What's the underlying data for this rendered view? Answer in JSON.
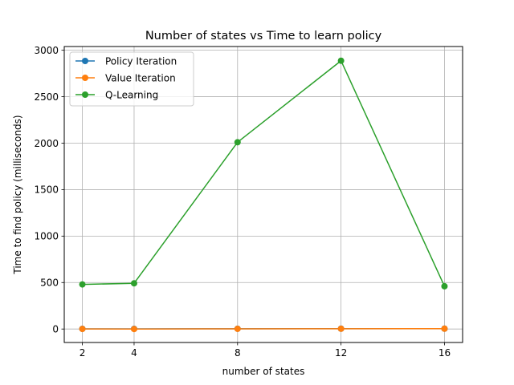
{
  "chart_data": {
    "type": "line",
    "title": "Number of states vs Time to learn policy",
    "xlabel": "number of states",
    "ylabel": "Time to find policy (milliseconds)",
    "x": [
      2,
      4,
      8,
      12,
      16
    ],
    "xticks": [
      2,
      4,
      8,
      12,
      16
    ],
    "yticks": [
      0,
      500,
      1000,
      1500,
      2000,
      2500,
      3000
    ],
    "xlim": [
      1.3,
      16.7
    ],
    "ylim": [
      -145,
      3040
    ],
    "grid": true,
    "legend_position": "top-left",
    "series": [
      {
        "name": "Policy Iteration",
        "color": "#1f77b4",
        "marker": "circle",
        "values": [
          2,
          2,
          3,
          4,
          4
        ]
      },
      {
        "name": "Value Iteration",
        "color": "#ff7f0e",
        "marker": "circle",
        "values": [
          1,
          0,
          2,
          3,
          4
        ]
      },
      {
        "name": "Q-Learning",
        "color": "#2ca02c",
        "marker": "circle",
        "values": [
          480,
          492,
          2010,
          2887,
          460
        ]
      }
    ]
  }
}
